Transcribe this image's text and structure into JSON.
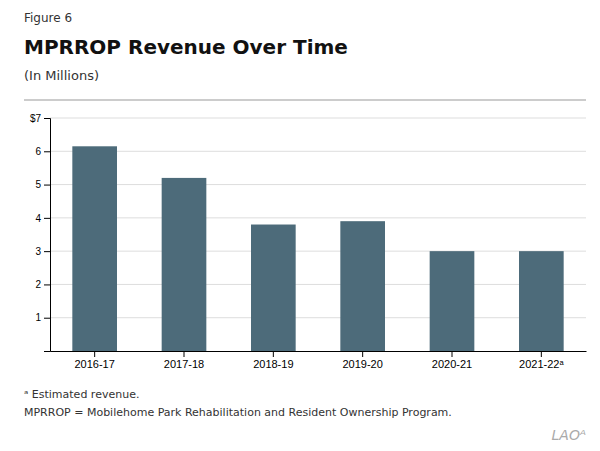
{
  "chart_data": {
    "type": "bar",
    "title": "MPRROP Revenue Over Time",
    "subtitle": "(In Millions)",
    "annotations": [
      "Figure 6",
      "ᵃ Estimated revenue.",
      "MPRROP = Mobilehome Park Rehabilitation and Resident Ownership Program.",
      "LAOᴬ"
    ],
    "categories": [
      "2016-17",
      "2017-18",
      "2018-19",
      "2019-20",
      "2020-21",
      "2021-22ᵃ"
    ],
    "values": [
      6.15,
      5.2,
      3.8,
      3.9,
      3.0,
      3.0
    ],
    "color": "#4d6b7a",
    "ylim": [
      0,
      7
    ],
    "yticks": [
      1,
      2,
      3,
      4,
      5,
      6,
      {
        "value": 7,
        "label": "$7"
      }
    ],
    "grid": true
  }
}
